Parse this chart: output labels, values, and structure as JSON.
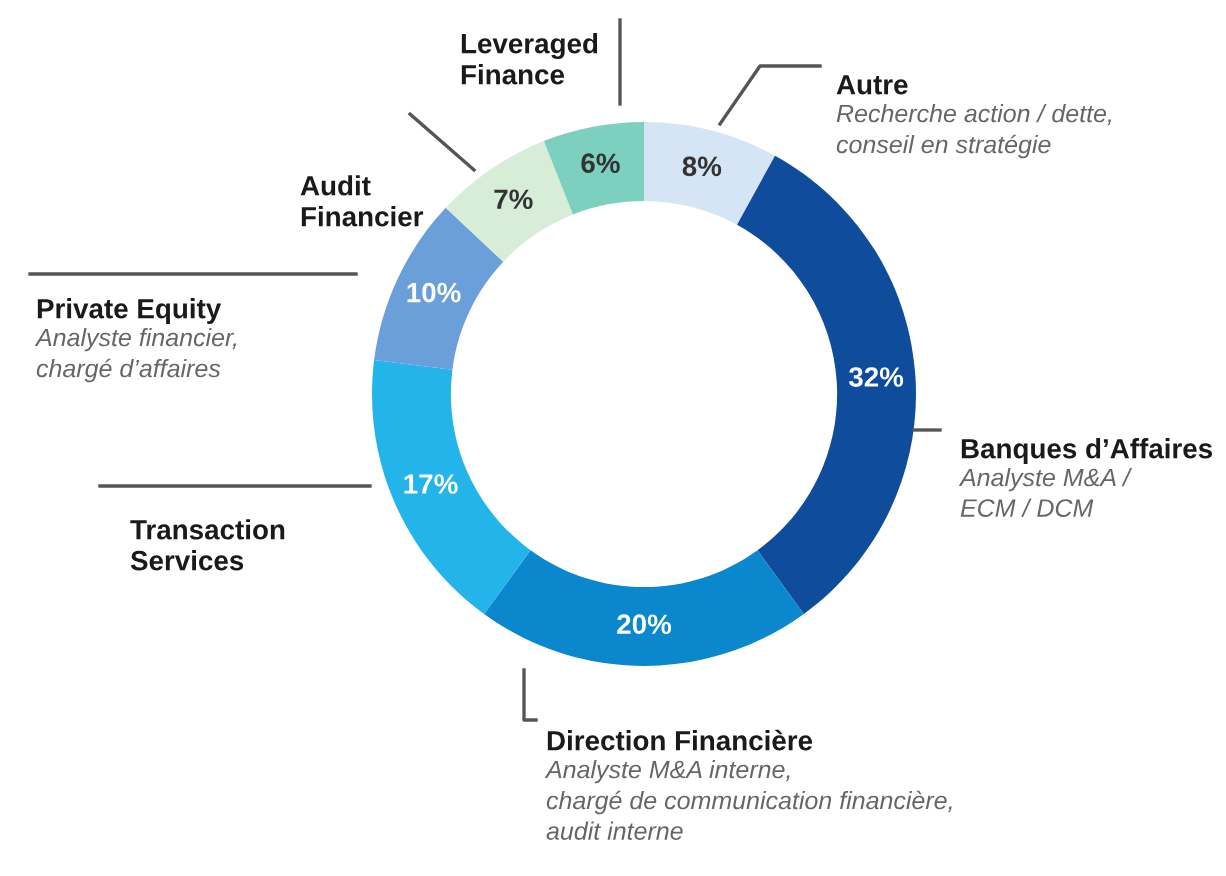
{
  "chart_data": {
    "type": "donut",
    "categories": [
      "Autre",
      "Banques d’Affaires",
      "Direction Financière",
      "Transaction\nServices",
      "Private Equity",
      "Audit\nFinancier",
      "Leveraged\nFinance"
    ],
    "values": [
      8,
      32,
      20,
      17,
      10,
      7,
      6
    ],
    "value_labels": [
      "8%",
      "32%",
      "20%",
      "17%",
      "10%",
      "7%",
      "6%"
    ],
    "colors": [
      "#d5e5f5",
      "#0f4c9c",
      "#0a87cd",
      "#23b5e9",
      "#6a9fd9",
      "#d8edd8",
      "#7dcfc0"
    ],
    "annotations": [
      {
        "text": "Recherche action / dette,\nconseil en stratégie",
        "x": "Autre"
      },
      {
        "text": "Analyste M&A /\nECM / DCM",
        "x": "Banques d’Affaires"
      },
      {
        "text": "Analyste M&A interne,\nchargé de communication financière,\naudit interne",
        "x": "Direction Financière"
      },
      {
        "text": "Analyste financier,\nchargé d’affaires",
        "x": "Private Equity"
      }
    ]
  }
}
